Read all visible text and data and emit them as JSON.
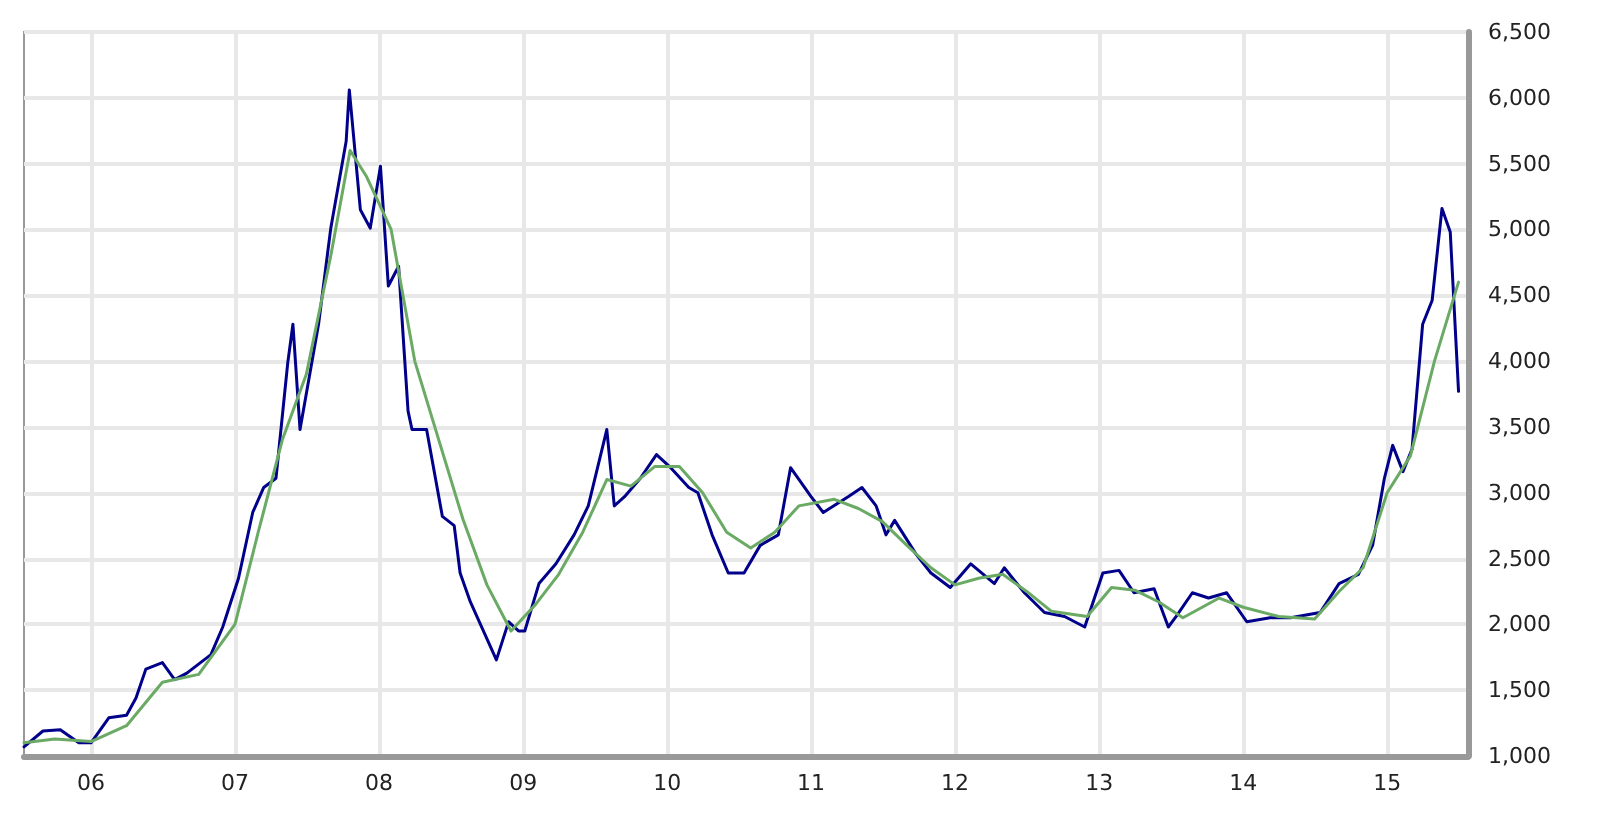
{
  "chart_data": {
    "type": "line",
    "ylim": [
      1000,
      6500
    ],
    "yticks": [
      {
        "value": 1000,
        "label": "1,000"
      },
      {
        "value": 1500,
        "label": "1,500"
      },
      {
        "value": 2000,
        "label": "2,000"
      },
      {
        "value": 2500,
        "label": "2,500"
      },
      {
        "value": 3000,
        "label": "3,000"
      },
      {
        "value": 3500,
        "label": "3,500"
      },
      {
        "value": 4000,
        "label": "4,000"
      },
      {
        "value": 4500,
        "label": "4,500"
      },
      {
        "value": 5000,
        "label": "5,000"
      },
      {
        "value": 5500,
        "label": "5,500"
      },
      {
        "value": 6000,
        "label": "6,000"
      },
      {
        "value": 6500,
        "label": "6,500"
      }
    ],
    "xlim": [
      "2005-07-15",
      "2015-07-25"
    ],
    "xticks": [
      {
        "value": "2006-01-01",
        "label": "06"
      },
      {
        "value": "2007-01-01",
        "label": "07"
      },
      {
        "value": "2008-01-01",
        "label": "08"
      },
      {
        "value": "2009-01-01",
        "label": "09"
      },
      {
        "value": "2010-01-01",
        "label": "10"
      },
      {
        "value": "2011-01-01",
        "label": "11"
      },
      {
        "value": "2012-01-01",
        "label": "12"
      },
      {
        "value": "2013-01-01",
        "label": "13"
      },
      {
        "value": "2014-01-01",
        "label": "14"
      },
      {
        "value": "2015-01-01",
        "label": "15"
      }
    ],
    "grid": true,
    "line_style": "solid",
    "series": [
      {
        "color": "#00008b",
        "x": [
          "2005-07-15",
          "2005-09-01",
          "2005-10-15",
          "2005-12-01",
          "2006-01-01",
          "2006-02-15",
          "2006-04-01",
          "2006-04-25",
          "2006-05-20",
          "2006-07-01",
          "2006-08-01",
          "2006-09-01",
          "2006-11-01",
          "2006-12-01",
          "2007-01-10",
          "2007-02-15",
          "2007-03-15",
          "2007-04-15",
          "2007-05-15",
          "2007-05-28",
          "2007-06-15",
          "2007-08-01",
          "2007-09-01",
          "2007-10-10",
          "2007-10-18",
          "2007-11-15",
          "2007-12-10",
          "2008-01-05",
          "2008-01-25",
          "2008-02-20",
          "2008-03-15",
          "2008-03-25",
          "2008-05-01",
          "2008-06-10",
          "2008-07-10",
          "2008-07-25",
          "2008-08-20",
          "2008-10-25",
          "2008-11-25",
          "2008-12-20",
          "2009-01-05",
          "2009-02-10",
          "2009-03-25",
          "2009-05-10",
          "2009-06-15",
          "2009-08-01",
          "2009-08-20",
          "2009-09-15",
          "2009-10-25",
          "2009-12-05",
          "2010-01-10",
          "2010-02-25",
          "2010-03-20",
          "2010-04-25",
          "2010-06-05",
          "2010-07-15",
          "2010-08-25",
          "2010-10-10",
          "2010-11-10",
          "2011-01-01",
          "2011-02-01",
          "2011-04-05",
          "2011-05-10",
          "2011-06-15",
          "2011-07-10",
          "2011-08-01",
          "2011-09-25",
          "2011-11-01",
          "2011-12-20",
          "2012-02-10",
          "2012-04-10",
          "2012-05-05",
          "2012-06-25",
          "2012-08-15",
          "2012-10-05",
          "2012-11-25",
          "2013-01-10",
          "2013-02-20",
          "2013-03-30",
          "2013-05-20",
          "2013-06-25",
          "2013-07-15",
          "2013-08-25",
          "2013-10-05",
          "2013-11-20",
          "2014-01-10",
          "2014-03-10",
          "2014-05-01",
          "2014-07-15",
          "2014-09-01",
          "2014-10-20",
          "2014-11-25",
          "2014-12-25",
          "2015-01-15",
          "2015-02-10",
          "2015-03-05",
          "2015-04-01",
          "2015-04-25",
          "2015-05-20",
          "2015-06-10",
          "2015-07-01"
        ],
        "values": [
          1070,
          1190,
          1200,
          1100,
          1100,
          1290,
          1310,
          1440,
          1660,
          1710,
          1580,
          1630,
          1770,
          1980,
          2350,
          2850,
          3040,
          3110,
          3990,
          4280,
          3480,
          4280,
          5010,
          5670,
          6060,
          5150,
          5010,
          5480,
          4570,
          4720,
          3620,
          3480,
          3480,
          2820,
          2750,
          2390,
          2170,
          1730,
          2020,
          1950,
          1950,
          2310,
          2460,
          2680,
          2900,
          3480,
          2900,
          2970,
          3110,
          3290,
          3190,
          3040,
          3000,
          2680,
          2390,
          2390,
          2600,
          2680,
          3190,
          2970,
          2850,
          2970,
          3040,
          2900,
          2680,
          2790,
          2530,
          2390,
          2280,
          2460,
          2310,
          2430,
          2240,
          2090,
          2060,
          1980,
          2390,
          2410,
          2240,
          2270,
          1980,
          2060,
          2240,
          2200,
          2240,
          2020,
          2050,
          2050,
          2090,
          2310,
          2380,
          2600,
          3110,
          3360,
          3160,
          3330,
          4280,
          4460,
          5160,
          4980,
          3770
        ]
      },
      {
        "color": "#6aaa64",
        "x": [
          "2005-07-15",
          "2005-10-01",
          "2006-01-01",
          "2006-04-01",
          "2006-07-01",
          "2006-10-01",
          "2007-01-01",
          "2007-03-01",
          "2007-05-01",
          "2007-07-01",
          "2007-09-01",
          "2007-10-20",
          "2007-12-01",
          "2008-02-01",
          "2008-04-01",
          "2008-06-01",
          "2008-08-01",
          "2008-10-01",
          "2008-12-01",
          "2009-02-01",
          "2009-04-01",
          "2009-06-01",
          "2009-08-01",
          "2009-10-01",
          "2009-12-01",
          "2010-02-01",
          "2010-04-01",
          "2010-06-01",
          "2010-08-01",
          "2010-10-01",
          "2010-12-01",
          "2011-03-01",
          "2011-05-01",
          "2011-07-01",
          "2011-09-01",
          "2011-11-01",
          "2012-01-01",
          "2012-03-01",
          "2012-05-01",
          "2012-07-01",
          "2012-09-01",
          "2012-12-01",
          "2013-02-01",
          "2013-04-01",
          "2013-06-01",
          "2013-08-01",
          "2013-11-01",
          "2014-01-01",
          "2014-04-01",
          "2014-07-01",
          "2014-09-01",
          "2014-11-01",
          "2015-01-01",
          "2015-03-01",
          "2015-05-01",
          "2015-07-01"
        ],
        "values": [
          1100,
          1130,
          1110,
          1230,
          1560,
          1620,
          2000,
          2700,
          3400,
          3900,
          4800,
          5600,
          5400,
          5000,
          4000,
          3400,
          2800,
          2300,
          1950,
          2150,
          2380,
          2700,
          3100,
          3050,
          3200,
          3200,
          3000,
          2700,
          2580,
          2700,
          2900,
          2950,
          2880,
          2780,
          2600,
          2430,
          2300,
          2350,
          2380,
          2250,
          2100,
          2060,
          2280,
          2260,
          2170,
          2050,
          2200,
          2130,
          2060,
          2040,
          2250,
          2430,
          3000,
          3280,
          4000,
          4600
        ]
      }
    ]
  }
}
